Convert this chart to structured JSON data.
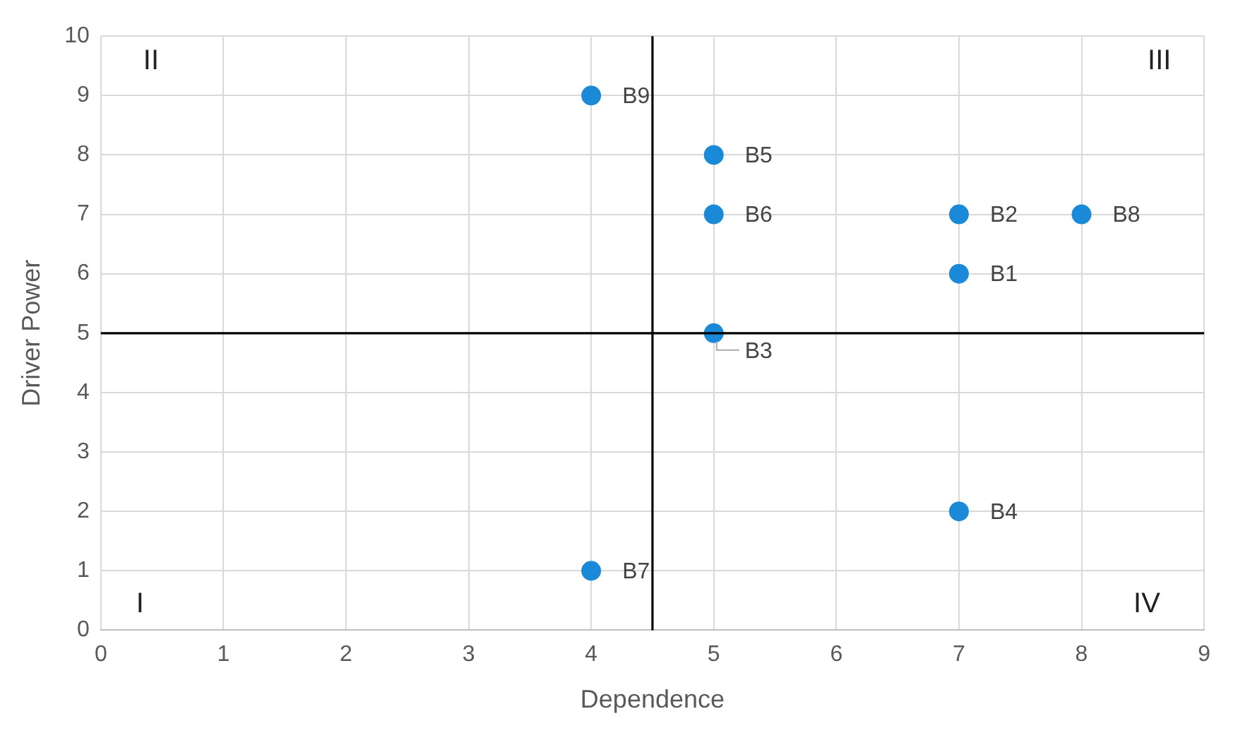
{
  "chart_data": {
    "type": "scatter",
    "xlabel": "Dependence",
    "ylabel": "Driver Power",
    "series": [
      {
        "color": "#1a8ad8",
        "x": [
          7,
          7,
          5,
          7,
          5,
          5,
          4,
          8,
          4
        ],
        "values": [
          6,
          7,
          5,
          2,
          8,
          7,
          1,
          7,
          9
        ]
      }
    ],
    "xlim": [
      0,
      9
    ],
    "xticks": [
      0,
      1,
      2,
      3,
      4,
      5,
      6,
      7,
      8,
      9
    ],
    "ylim": [
      0,
      10
    ],
    "yticks": [
      0,
      1,
      2,
      3,
      4,
      5,
      6,
      7,
      8,
      9,
      10
    ],
    "grid": true,
    "legend": false,
    "marker": "circle",
    "ref_lines": [
      {
        "axis": "x",
        "value": 4.5,
        "color": "#000000"
      },
      {
        "axis": "y",
        "value": 5,
        "color": "#000000"
      }
    ],
    "annotations": [
      {
        "text": "B1",
        "x": 7,
        "y": 6
      },
      {
        "text": "B2",
        "x": 7,
        "y": 7
      },
      {
        "text": "B3",
        "x": 5,
        "y": 5
      },
      {
        "text": "B4",
        "x": 7,
        "y": 2
      },
      {
        "text": "B5",
        "x": 5,
        "y": 8
      },
      {
        "text": "B6",
        "x": 5,
        "y": 7
      },
      {
        "text": "B7",
        "x": 4,
        "y": 1
      },
      {
        "text": "B8",
        "x": 8,
        "y": 7
      },
      {
        "text": "B9",
        "x": 4,
        "y": 9
      },
      "II",
      "III",
      "I",
      "IV"
    ]
  }
}
